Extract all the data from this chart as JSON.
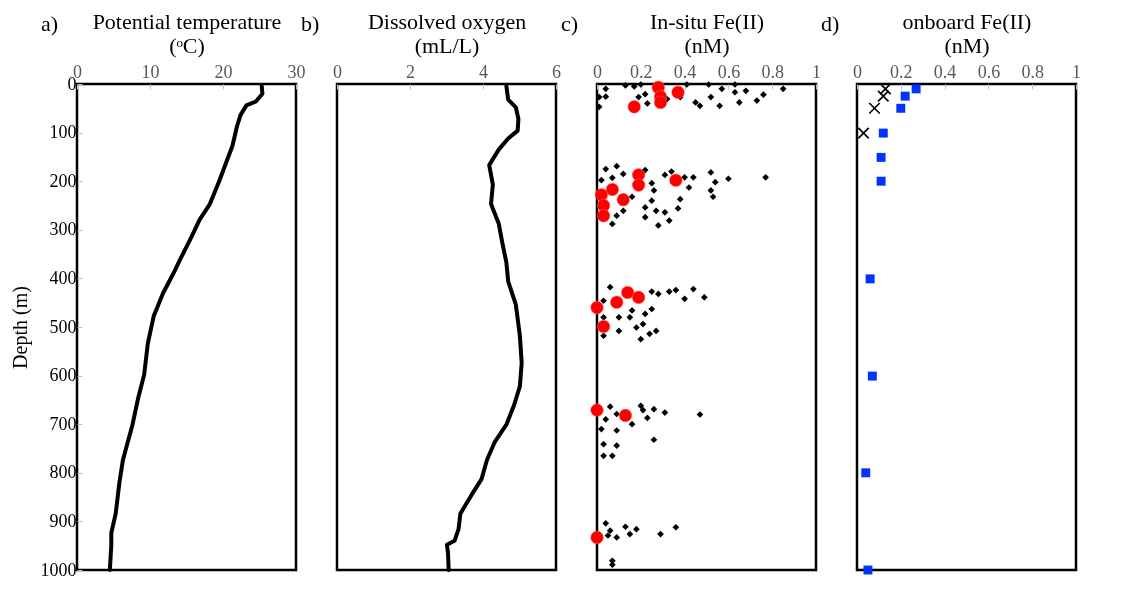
{
  "chart_data": [
    {
      "type": "line",
      "title": "a)",
      "xlabel": "Potential temperature (ᵒC)",
      "ylabel": "Depth (m)",
      "xlim": [
        0,
        30
      ],
      "xticks": [
        0,
        10,
        20,
        30
      ],
      "ylim": [
        1000,
        0
      ],
      "yticks": [
        0,
        100,
        200,
        300,
        400,
        500,
        600,
        700,
        800,
        900,
        1000
      ],
      "series": [
        {
          "color": "#000000",
          "x": [
            25.3,
            25.4,
            24.5,
            23.2,
            22.4,
            21.9,
            21.3,
            20.5,
            19.5,
            18.2,
            16.8,
            15.8,
            14.2,
            13.2,
            11.8,
            10.5,
            9.7,
            9.2,
            8.4,
            7.6,
            6.3,
            5.8,
            5.3,
            4.7,
            4.7,
            4.5
          ],
          "values": [
            4,
            20,
            36,
            44,
            64,
            88,
            127,
            159,
            199,
            247,
            279,
            311,
            359,
            390,
            430,
            478,
            534,
            598,
            645,
            701,
            773,
            821,
            884,
            924,
            948,
            1000
          ]
        }
      ]
    },
    {
      "type": "line",
      "title": "b)",
      "xlabel": "Dissolved oxygen (mL/L)",
      "xlim": [
        0,
        6
      ],
      "xticks": [
        0,
        2,
        4,
        6
      ],
      "ylim": [
        1000,
        0
      ],
      "yticks": [
        0,
        100,
        200,
        300,
        400,
        500,
        600,
        700,
        800,
        900,
        1000
      ],
      "tick_labels": "x",
      "series": [
        {
          "color": "#000000",
          "x": [
            4.64,
            4.69,
            4.9,
            4.97,
            4.95,
            4.69,
            4.43,
            4.17,
            4.27,
            4.22,
            4.43,
            4.53,
            4.64,
            4.69,
            4.9,
            5.01,
            5.06,
            5.01,
            4.85,
            4.64,
            4.32,
            4.11,
            3.96,
            3.69,
            3.38,
            3.33,
            3.22,
            3.01,
            3.04,
            3.06
          ],
          "values": [
            4,
            32,
            48,
            72,
            96,
            112,
            135,
            167,
            207,
            247,
            287,
            327,
            367,
            406,
            454,
            518,
            574,
            622,
            661,
            701,
            737,
            773,
            813,
            845,
            884,
            916,
            940,
            948,
            964,
            1000
          ]
        }
      ]
    },
    {
      "type": "scatter",
      "title": "c)",
      "xlabel": "In-situ Fe(II) (nM)",
      "xlim": [
        0,
        1
      ],
      "xticks": [
        0,
        0.2,
        0.4,
        0.6,
        0.8,
        1
      ],
      "ylim": [
        1000,
        0
      ],
      "yticks": [
        0,
        100,
        200,
        300,
        400,
        500,
        600,
        700,
        800,
        900,
        1000
      ],
      "tick_labels": "x",
      "series": [
        {
          "color": "#000000",
          "marker": "diamond",
          "x": [
            0.04,
            0.01,
            0.01,
            0.04,
            0.13,
            0.17,
            0.2,
            0.22,
            0.19,
            0.23,
            0.32,
            0.38,
            0.41,
            0.45,
            0.47,
            0.51,
            0.52,
            0.56,
            0.57,
            0.63,
            0.63,
            0.65,
            0.68,
            0.73,
            0.76,
            0.85,
            0.04,
            0.09,
            0.12,
            0.02,
            0.07,
            0.22,
            0.25,
            0.26,
            0.16,
            0.22,
            0.25,
            0.27,
            0.28,
            0.31,
            0.33,
            0.37,
            0.38,
            0.31,
            0.34,
            0.4,
            0.44,
            0.52,
            0.54,
            0.6,
            0.77,
            0.52,
            0.53,
            0.09,
            0.07,
            0.12,
            0.22,
            0.42,
            0.06,
            null,
            null,
            0.25,
            0.28,
            0.33,
            0.36,
            0.4,
            0.44,
            0.49,
            0.03,
            0.16,
            0.1,
            0.15,
            0.22,
            0.25,
            0.18,
            0.1,
            0.21,
            0.24,
            0.27,
            0.03,
            0.03,
            0.2,
            0.06,
            0.04,
            0.09,
            0.2,
            0.21,
            0.26,
            0.31,
            0.23,
            0.16,
            0.47,
            0.02,
            0.09,
            0.26,
            0.03,
            0.09,
            0.03,
            0.07,
            0.04,
            0.06,
            0.09,
            0.13,
            0.15,
            0.18,
            0.29,
            0.36,
            0.05,
            0.07,
            0.07
          ],
          "values": [
            10,
            27,
            47,
            26,
            3,
            5,
            1,
            21,
            27,
            40,
            31,
            27,
            1,
            38,
            45,
            1,
            27,
            45,
            10,
            1,
            17,
            38,
            14,
            34,
            22,
            10,
            175,
            169,
            185,
            198,
            193,
            177,
            204,
            219,
            232,
            254,
            240,
            261,
            291,
            264,
            281,
            256,
            237,
            187,
            180,
            192,
            192,
            182,
            202,
            195,
            192,
            219,
            232,
            271,
            288,
            261,
            274,
            213,
            418,
            null,
            null,
            427,
            432,
            427,
            424,
            442,
            422,
            439,
            446,
            466,
            480,
            480,
            473,
            463,
            501,
            508,
            494,
            514,
            508,
            480,
            518,
            525,
            664,
            690,
            679,
            662,
            671,
            669,
            676,
            687,
            700,
            680,
            710,
            713,
            732,
            741,
            744,
            765,
            765,
            904,
            919,
            933,
            911,
            926,
            916,
            926,
            912,
            929,
            981,
            989
          ]
        },
        {
          "color": "#ff0000",
          "marker": "circle",
          "x": [
            0.28,
            0.29,
            0.29,
            0.37,
            0.17,
            0.19,
            0.19,
            0.36,
            0.07,
            0.12,
            0.02,
            0.03,
            null,
            0.03,
            0.14,
            0.19,
            0.09,
            0,
            0.03,
            0,
            0.13,
            0
          ],
          "values": [
            7,
            26,
            38,
            17,
            47,
            187,
            208,
            198,
            217,
            238,
            228,
            250,
            null,
            271,
            429,
            439,
            449,
            460,
            499,
            671,
            682,
            933
          ]
        }
      ]
    },
    {
      "type": "scatter",
      "title": "d)",
      "xlabel": "onboard Fe(II) (nM)",
      "xlim": [
        0,
        1
      ],
      "xticks": [
        0,
        0.2,
        0.4,
        0.6,
        0.8,
        1
      ],
      "ylim": [
        1000,
        0
      ],
      "yticks": [
        0,
        100,
        200,
        300,
        400,
        500,
        600,
        700,
        800,
        900,
        1000
      ],
      "tick_labels": "x",
      "series": [
        {
          "color": "#000000",
          "marker": "cross",
          "x": [
            0.13,
            0.12,
            0.08,
            0.03
          ],
          "values": [
            10,
            25,
            50,
            101
          ]
        },
        {
          "color": "#0033ff",
          "marker": "square",
          "x": [
            0.27,
            0.22,
            0.2,
            0.12,
            0.11,
            0.11,
            0.06,
            0.07,
            0.04,
            0.05
          ],
          "values": [
            10,
            25,
            50,
            101,
            151,
            200,
            401,
            601,
            800,
            1000
          ]
        }
      ]
    }
  ]
}
